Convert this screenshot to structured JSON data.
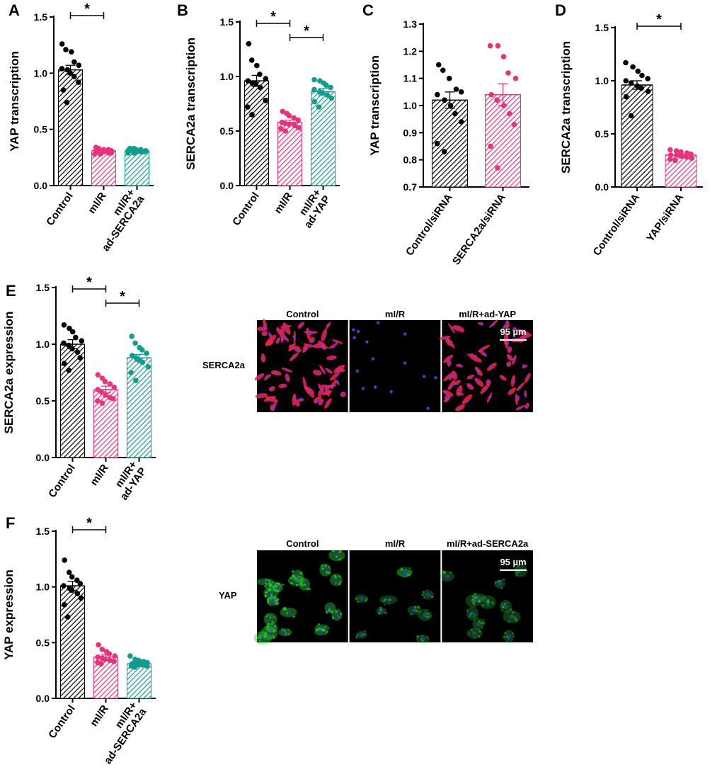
{
  "colors": {
    "black": "#000000",
    "pink": "#e6337d",
    "teal": "#139b8f",
    "red": "#ff2040",
    "blue": "#6a38d8",
    "green": "#2fd62f",
    "nucleus": "#2540a0"
  },
  "chart_data": [
    {
      "id": "A",
      "type": "bar",
      "panel_label": "A",
      "ylabel": "YAP transcription",
      "ylim": [
        0,
        1.5
      ],
      "yticks": [
        0.0,
        0.5,
        1.0,
        1.5
      ],
      "categories": [
        "Control",
        "mI/R",
        "mI/R+\nad-SERCA2a"
      ],
      "bar_colors": [
        "black",
        "pink",
        "teal"
      ],
      "values": [
        1.03,
        0.31,
        0.31
      ],
      "errors": [
        0.04,
        0.01,
        0.01
      ],
      "points": [
        [
          1.26,
          1.21,
          1.19,
          1.1,
          1.07,
          1.04,
          1.03,
          1.0,
          0.97,
          0.92,
          0.85,
          0.74
        ],
        [
          0.34,
          0.33,
          0.32,
          0.32,
          0.31,
          0.31,
          0.3,
          0.3,
          0.29,
          0.29,
          0.28,
          0.28
        ],
        [
          0.33,
          0.33,
          0.32,
          0.32,
          0.31,
          0.31,
          0.31,
          0.3,
          0.3,
          0.3,
          0.29,
          0.29
        ]
      ],
      "significance": [
        {
          "pair": [
            0,
            1
          ],
          "label": "*"
        }
      ]
    },
    {
      "id": "B",
      "type": "bar",
      "panel_label": "B",
      "ylabel": "SERCA2a transcription",
      "ylim": [
        0,
        1.5
      ],
      "yticks": [
        0.0,
        0.5,
        1.0,
        1.5
      ],
      "categories": [
        "Control",
        "mI/R",
        "mI/R+\nad-YAP"
      ],
      "bar_colors": [
        "black",
        "pink",
        "teal"
      ],
      "values": [
        0.96,
        0.58,
        0.86
      ],
      "errors": [
        0.05,
        0.02,
        0.03
      ],
      "points": [
        [
          1.3,
          1.15,
          1.1,
          1.02,
          0.98,
          0.96,
          0.94,
          0.93,
          0.9,
          0.78,
          0.72,
          0.65
        ],
        [
          0.68,
          0.66,
          0.64,
          0.62,
          0.6,
          0.58,
          0.57,
          0.56,
          0.55,
          0.53,
          0.52,
          0.5
        ],
        [
          0.97,
          0.96,
          0.94,
          0.92,
          0.9,
          0.88,
          0.86,
          0.85,
          0.83,
          0.8,
          0.77,
          0.72
        ]
      ],
      "significance": [
        {
          "pair": [
            0,
            1
          ],
          "label": "*"
        },
        {
          "pair": [
            1,
            2
          ],
          "label": "*"
        }
      ]
    },
    {
      "id": "C",
      "type": "bar",
      "panel_label": "C",
      "ylabel": "YAP transcription",
      "ylim": [
        0.7,
        1.3
      ],
      "yticks": [
        0.7,
        0.8,
        0.9,
        1.0,
        1.1,
        1.2,
        1.3
      ],
      "categories": [
        "Control/siRNA",
        "SERCA2a/siRNA"
      ],
      "bar_colors": [
        "black",
        "pink"
      ],
      "values": [
        1.02,
        1.04
      ],
      "errors": [
        0.03,
        0.04
      ],
      "points": [
        [
          1.15,
          1.13,
          1.1,
          1.06,
          1.05,
          1.04,
          1.02,
          1.0,
          0.97,
          0.94,
          0.86,
          0.83
        ],
        [
          1.22,
          1.22,
          1.18,
          1.12,
          1.1,
          1.04,
          1.02,
          1.0,
          0.97,
          0.93,
          0.85,
          0.77
        ]
      ],
      "significance": []
    },
    {
      "id": "D",
      "type": "bar",
      "panel_label": "D",
      "ylabel": "SERCA2a transcription",
      "ylim": [
        0,
        1.5
      ],
      "yticks": [
        0.0,
        0.5,
        1.0,
        1.5
      ],
      "categories": [
        "Control/siRNA",
        "YAP/siRNA"
      ],
      "bar_colors": [
        "black",
        "pink"
      ],
      "values": [
        0.96,
        0.3
      ],
      "errors": [
        0.04,
        0.01
      ],
      "points": [
        [
          1.17,
          1.13,
          1.09,
          1.05,
          1.02,
          1.0,
          0.98,
          0.95,
          0.93,
          0.9,
          0.85,
          0.67
        ],
        [
          0.35,
          0.34,
          0.33,
          0.32,
          0.31,
          0.3,
          0.3,
          0.29,
          0.28,
          0.27,
          0.26,
          0.25
        ]
      ],
      "significance": [
        {
          "pair": [
            0,
            1
          ],
          "label": "*"
        }
      ]
    },
    {
      "id": "E",
      "type": "bar",
      "panel_label": "E",
      "ylabel": "SERCA2a expression",
      "ylim": [
        0,
        1.5
      ],
      "yticks": [
        0.0,
        0.5,
        1.0,
        1.5
      ],
      "categories": [
        "Control",
        "mI/R",
        "mI/R+\nad-YAP"
      ],
      "bar_colors": [
        "black",
        "pink",
        "teal"
      ],
      "values": [
        1.0,
        0.6,
        0.88
      ],
      "errors": [
        0.04,
        0.03,
        0.03
      ],
      "points": [
        [
          1.17,
          1.14,
          1.11,
          1.06,
          1.03,
          1.01,
          0.99,
          0.96,
          0.93,
          0.88,
          0.83,
          0.77
        ],
        [
          0.73,
          0.7,
          0.67,
          0.65,
          0.62,
          0.6,
          0.58,
          0.55,
          0.53,
          0.52,
          0.5,
          0.48
        ],
        [
          1.07,
          1.01,
          0.97,
          0.95,
          0.92,
          0.9,
          0.88,
          0.86,
          0.84,
          0.8,
          0.75,
          0.68
        ]
      ],
      "significance": [
        {
          "pair": [
            0,
            1
          ],
          "label": "*"
        },
        {
          "pair": [
            1,
            2
          ],
          "label": "*"
        }
      ]
    },
    {
      "id": "F",
      "type": "bar",
      "panel_label": "F",
      "ylabel": "YAP expression",
      "ylim": [
        0,
        1.5
      ],
      "yticks": [
        0.0,
        0.5,
        1.0,
        1.5
      ],
      "categories": [
        "Control",
        "mI/R",
        "mI/R+\nad-SERCA2a"
      ],
      "bar_colors": [
        "black",
        "pink",
        "teal"
      ],
      "values": [
        1.01,
        0.37,
        0.31
      ],
      "errors": [
        0.04,
        0.02,
        0.01
      ],
      "points": [
        [
          1.24,
          1.13,
          1.09,
          1.06,
          1.03,
          1.01,
          0.99,
          0.97,
          0.94,
          0.9,
          0.84,
          0.73
        ],
        [
          0.48,
          0.44,
          0.42,
          0.4,
          0.38,
          0.37,
          0.36,
          0.35,
          0.34,
          0.33,
          0.32,
          0.31
        ],
        [
          0.38,
          0.35,
          0.34,
          0.33,
          0.32,
          0.31,
          0.31,
          0.3,
          0.3,
          0.29,
          0.29,
          0.28
        ]
      ],
      "significance": [
        {
          "pair": [
            0,
            1
          ],
          "label": "*"
        }
      ]
    }
  ],
  "images": [
    {
      "id": "E",
      "row_label": "SERCA2a",
      "column_labels": [
        "Control",
        "mI/R",
        "mI/R+ad-YAP"
      ],
      "scale_bar": "95 µm",
      "stain": "red",
      "cell_counts": [
        70,
        15,
        60
      ]
    },
    {
      "id": "F",
      "row_label": "YAP",
      "column_labels": [
        "Control",
        "mI/R",
        "mI/R+ad-SERCA2a"
      ],
      "scale_bar": "95 µm",
      "stain": "green",
      "cell_counts": [
        22,
        10,
        12
      ]
    }
  ]
}
